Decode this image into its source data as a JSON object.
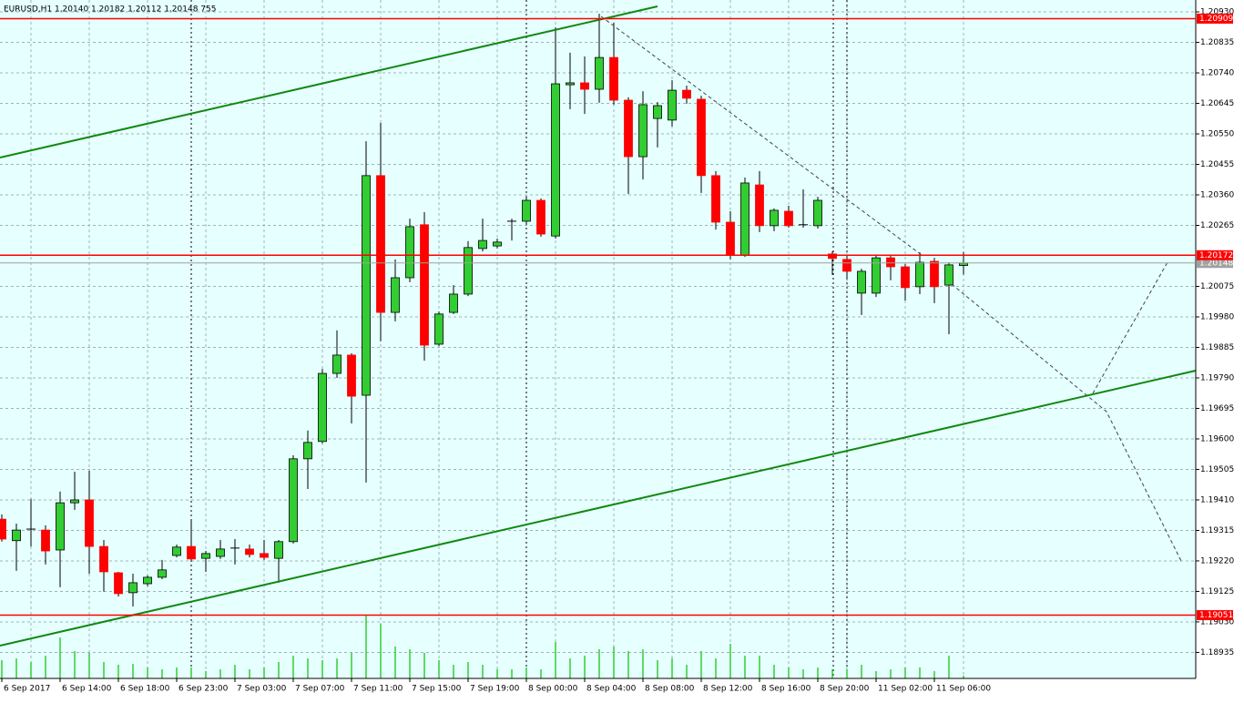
{
  "chart_data": {
    "type": "candlestick",
    "title": "EURUSD,H1  1.20140 1.20182 1.20112 1.20148  755",
    "categories": [
      "6 Sep 2017",
      null,
      null,
      null,
      "6 Sep 14:00",
      null,
      null,
      null,
      "6 Sep 18:00",
      null,
      null,
      null,
      "6 Sep 23:00",
      null,
      null,
      null,
      "7 Sep 03:00",
      null,
      null,
      null,
      "7 Sep 07:00",
      null,
      null,
      null,
      "7 Sep 11:00",
      null,
      null,
      null,
      "7 Sep 15:00",
      null,
      null,
      null,
      "7 Sep 19:00",
      null,
      null,
      null,
      "8 Sep 00:00",
      null,
      null,
      null,
      "8 Sep 04:00",
      null,
      null,
      null,
      "8 Sep 08:00",
      null,
      null,
      null,
      "8 Sep 12:00",
      null,
      null,
      null,
      "8 Sep 16:00",
      null,
      null,
      null,
      "8 Sep 20:00",
      null,
      null,
      null,
      "11 Sep 02:00",
      null,
      null,
      null,
      "11 Sep 06:00",
      null,
      null
    ],
    "open": [
      1.1935,
      1.19283,
      1.19319,
      1.19316,
      1.19254,
      1.19401,
      1.1941,
      1.19265,
      1.19183,
      1.19121,
      1.19149,
      1.19169,
      1.19237,
      1.19265,
      1.19228,
      1.19234,
      1.19257,
      1.19257,
      1.19243,
      1.19228,
      1.1928,
      1.19538,
      1.19592,
      1.19804,
      1.19861,
      1.19736,
      1.2042,
      1.19994,
      1.20102,
      1.20267,
      1.19895,
      1.19994,
      1.20051,
      1.20193,
      1.20201,
      1.20275,
      1.20278,
      1.20343,
      1.20232,
      1.20703,
      1.20709,
      1.20689,
      1.20788,
      1.20655,
      1.20479,
      1.20598,
      1.20593,
      1.20686,
      1.20658,
      1.2042,
      1.20275,
      1.20173,
      1.20391,
      1.20264,
      1.20309,
      1.20264,
      1.20264,
      1.20176,
      1.20159,
      1.20054,
      1.20054,
      1.20164,
      1.20136,
      1.20074,
      1.20153,
      1.20079,
      1.2014
    ],
    "high": [
      1.19365,
      1.19336,
      1.19413,
      1.19331,
      1.19436,
      1.19498,
      1.19501,
      1.19285,
      1.19186,
      1.1918,
      1.19175,
      1.19223,
      1.19271,
      1.19345,
      1.19251,
      1.19285,
      1.19288,
      1.19271,
      1.19285,
      1.19285,
      1.19549,
      1.19626,
      1.19818,
      1.19938,
      1.19867,
      1.20527,
      1.20584,
      1.20159,
      1.20286,
      1.20306,
      1.19997,
      1.20079,
      1.20216,
      1.20286,
      1.20224,
      1.20286,
      1.20357,
      1.20349,
      1.20882,
      1.20803,
      1.20791,
      1.20924,
      1.20896,
      1.20664,
      1.20683,
      1.20649,
      1.20717,
      1.207,
      1.20669,
      1.20434,
      1.20309,
      1.20414,
      1.20434,
      1.20318,
      1.20326,
      1.20377,
      1.20354,
      1.20184,
      1.20173,
      1.2013,
      1.2017,
      1.20173,
      1.20145,
      1.20181,
      1.20164,
      1.2015,
      1.20182
    ],
    "low": [
      1.1928,
      1.19189,
      1.19265,
      1.19209,
      1.19138,
      1.19379,
      1.1918,
      1.19124,
      1.19109,
      1.19078,
      1.19141,
      1.19163,
      1.19231,
      1.1922,
      1.19186,
      1.19226,
      1.19209,
      1.19231,
      1.19223,
      1.19152,
      1.19274,
      1.19444,
      1.19586,
      1.1979,
      1.19648,
      1.19464,
      1.19904,
      1.19966,
      1.20088,
      1.19844,
      1.19889,
      1.19989,
      1.20045,
      1.20184,
      1.20193,
      1.20218,
      1.20272,
      1.2023,
      1.20224,
      1.20627,
      1.20612,
      1.20647,
      1.20641,
      1.20363,
      1.20408,
      1.20508,
      1.20573,
      1.20644,
      1.20366,
      1.20252,
      1.20159,
      1.20167,
      1.20244,
      1.20247,
      1.20258,
      1.20258,
      1.20255,
      1.20111,
      1.20102,
      1.19986,
      1.20042,
      1.20094,
      1.20031,
      1.20051,
      1.20023,
      1.19926,
      1.20112
    ],
    "close": [
      1.19288,
      1.19316,
      1.19316,
      1.19251,
      1.19401,
      1.1941,
      1.19265,
      1.19186,
      1.19118,
      1.19152,
      1.19169,
      1.19192,
      1.19263,
      1.19226,
      1.19243,
      1.19257,
      1.1926,
      1.1924,
      1.19231,
      1.1928,
      1.19538,
      1.19589,
      1.19804,
      1.19861,
      1.19733,
      1.2042,
      1.19994,
      1.20102,
      1.20261,
      1.19892,
      1.19989,
      1.20051,
      1.20196,
      1.20218,
      1.20213,
      1.20278,
      1.20343,
      1.20238,
      1.20706,
      1.20709,
      1.20689,
      1.20788,
      1.20655,
      1.20479,
      1.20641,
      1.20638,
      1.20686,
      1.20661,
      1.2042,
      1.20275,
      1.20173,
      1.20397,
      1.20264,
      1.20312,
      1.20264,
      1.20267,
      1.20343,
      1.20162,
      1.20122,
      1.20122,
      1.20164,
      1.20136,
      1.20071,
      1.2015,
      1.20074,
      1.20142,
      1.20148
    ],
    "volumes": [
      5000,
      5500,
      4500,
      6250,
      11250,
      7500,
      7000,
      4500,
      3750,
      4000,
      3000,
      2500,
      3000,
      3000,
      2000,
      2500,
      3750,
      2500,
      3000,
      4500,
      6250,
      5500,
      5000,
      5500,
      7000,
      17500,
      15000,
      8750,
      8000,
      7000,
      5000,
      3750,
      4500,
      3750,
      2500,
      2500,
      3000,
      2500,
      10000,
      5500,
      6250,
      8000,
      8750,
      7500,
      8000,
      5000,
      5500,
      3750,
      7500,
      5500,
      9500,
      6250,
      6250,
      3750,
      3000,
      2500,
      3000,
      2500,
      2500,
      3750,
      2000,
      2500,
      3000,
      3000,
      2000,
      6250,
      755
    ],
    "up_color": "#32cd32",
    "down_color": "#ff0000",
    "volume_color": "#32cd32",
    "levels": [
      1.20909,
      1.20172,
      1.19051
    ],
    "level_color": "#ff0000",
    "bid_color": "#a0a0a0",
    "ylim": [
      1.18854,
      1.20967
    ],
    "yticks": [
      {
        "value": 1.2093,
        "label": "1.20930"
      },
      1.20835,
      {
        "value": 1.2074,
        "label": "1.20740"
      },
      1.20645,
      {
        "value": 1.2055,
        "label": "1.20550"
      },
      1.20455,
      {
        "value": 1.2036,
        "label": "1.20360"
      },
      1.20265,
      1.20075,
      {
        "value": 1.1998,
        "label": "1.19980"
      },
      1.19885,
      {
        "value": 1.1979,
        "label": "1.19790"
      },
      1.19695,
      {
        "value": 1.196,
        "label": "1.19600"
      },
      1.19505,
      {
        "value": 1.1941,
        "label": "1.19410"
      },
      1.19315,
      {
        "value": 1.1922,
        "label": "1.19220"
      },
      1.19125,
      {
        "value": 1.1903,
        "label": "1.19030"
      },
      1.18935
    ],
    "grid": true
  }
}
